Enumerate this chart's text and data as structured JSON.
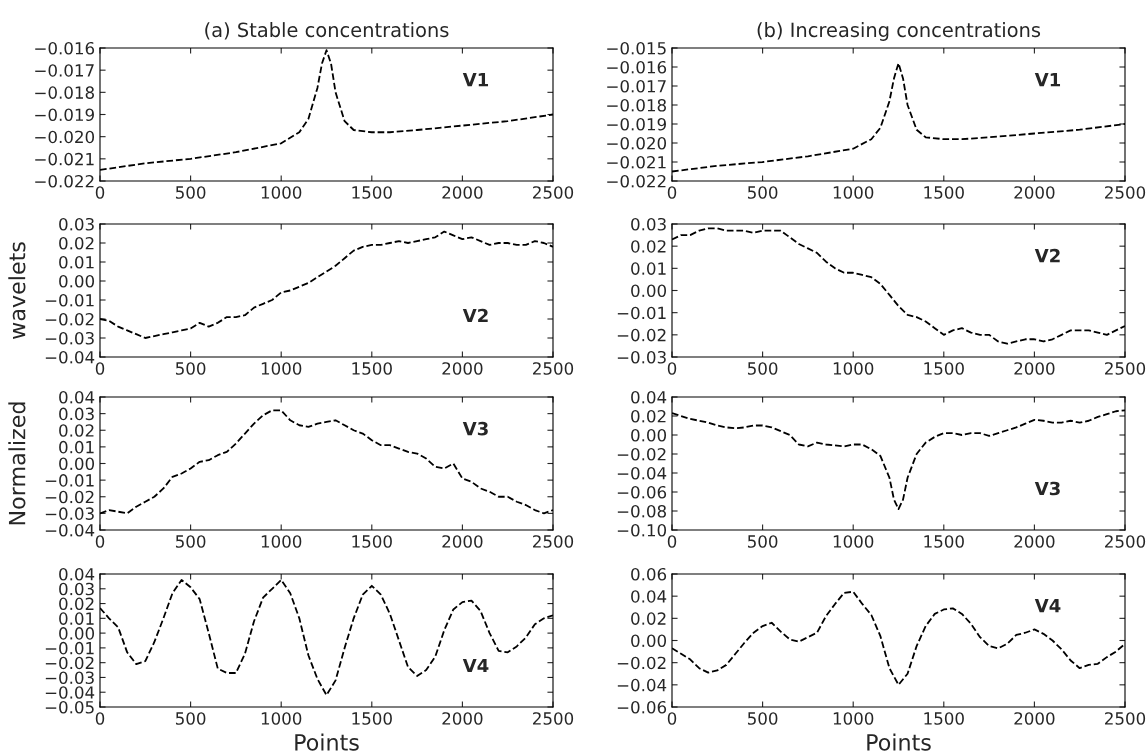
{
  "chart_data": [
    {
      "type": "line",
      "title": "(a) Stable concentrations",
      "line_style": "dashed",
      "xlim": [
        0,
        2500
      ],
      "xticks": [
        0,
        500,
        1000,
        1500,
        2000,
        2500
      ],
      "ylim": [
        -0.022,
        -0.016
      ],
      "yticks": [
        {
          "value": -0.022,
          "label": "−0.022"
        },
        {
          "value": -0.021,
          "label": "−0.021"
        },
        {
          "value": -0.02,
          "label": "−0.020"
        },
        {
          "value": -0.019,
          "label": "−0.019"
        },
        {
          "value": -0.018,
          "label": "−0.018"
        },
        {
          "value": -0.017,
          "label": "−0.017"
        },
        {
          "value": -0.016,
          "label": "−0.016"
        }
      ],
      "series": [
        {
          "name": "V1",
          "color": "#000000",
          "x": [
            0,
            250,
            500,
            750,
            1000,
            1100,
            1150,
            1200,
            1225,
            1250,
            1275,
            1300,
            1350,
            1400,
            1500,
            1600,
            1750,
            2000,
            2250,
            2500
          ],
          "values": [
            -0.0215,
            -0.0212,
            -0.021,
            -0.0207,
            -0.0203,
            -0.0198,
            -0.0192,
            -0.0178,
            -0.0167,
            -0.0161,
            -0.0167,
            -0.018,
            -0.0193,
            -0.0197,
            -0.0198,
            -0.0198,
            -0.0197,
            -0.0195,
            -0.0193,
            -0.019
          ]
        }
      ]
    },
    {
      "type": "line",
      "title": "(b) Increasing concentrations",
      "line_style": "dashed",
      "xlim": [
        0,
        2500
      ],
      "xticks": [
        0,
        500,
        1000,
        1500,
        2000,
        2500
      ],
      "ylim": [
        -0.022,
        -0.015
      ],
      "yticks": [
        {
          "value": -0.022,
          "label": "−0.022"
        },
        {
          "value": -0.021,
          "label": "−0.021"
        },
        {
          "value": -0.02,
          "label": "−0.020"
        },
        {
          "value": -0.019,
          "label": "−0.019"
        },
        {
          "value": -0.018,
          "label": "−0.018"
        },
        {
          "value": -0.017,
          "label": "−0.017"
        },
        {
          "value": -0.016,
          "label": "−0.016"
        },
        {
          "value": -0.015,
          "label": "−0.015"
        }
      ],
      "series": [
        {
          "name": "V1",
          "color": "#000000",
          "x": [
            0,
            250,
            500,
            750,
            1000,
            1100,
            1150,
            1200,
            1225,
            1250,
            1275,
            1300,
            1350,
            1400,
            1500,
            1600,
            1750,
            2000,
            2250,
            2500
          ],
          "values": [
            -0.0215,
            -0.0212,
            -0.021,
            -0.0207,
            -0.0203,
            -0.0198,
            -0.0192,
            -0.0178,
            -0.0166,
            -0.0158,
            -0.0166,
            -0.018,
            -0.0193,
            -0.0197,
            -0.0198,
            -0.0198,
            -0.0197,
            -0.0195,
            -0.0193,
            -0.019
          ]
        }
      ]
    },
    {
      "type": "line",
      "ylabel": "wavelets",
      "line_style": "dashed",
      "xlim": [
        0,
        2500
      ],
      "xticks": [
        0,
        500,
        1000,
        1500,
        2000,
        2500
      ],
      "ylim": [
        -0.04,
        0.03
      ],
      "yticks": [
        {
          "value": -0.04,
          "label": "−0.04"
        },
        {
          "value": -0.03,
          "label": "−0.03"
        },
        {
          "value": -0.02,
          "label": "−0.02"
        },
        {
          "value": -0.01,
          "label": "−0.01"
        },
        {
          "value": 0.0,
          "label": "0.00"
        },
        {
          "value": 0.01,
          "label": "0.01"
        },
        {
          "value": 0.02,
          "label": "0.02"
        },
        {
          "value": 0.03,
          "label": "0.03"
        }
      ],
      "series": [
        {
          "name": "V2",
          "color": "#000000",
          "x": [
            0,
            50,
            100,
            150,
            200,
            250,
            300,
            350,
            400,
            450,
            500,
            550,
            600,
            650,
            700,
            750,
            800,
            850,
            900,
            950,
            1000,
            1050,
            1100,
            1150,
            1200,
            1250,
            1300,
            1350,
            1400,
            1450,
            1500,
            1550,
            1600,
            1650,
            1700,
            1750,
            1800,
            1850,
            1900,
            1950,
            2000,
            2050,
            2100,
            2150,
            2200,
            2250,
            2300,
            2350,
            2400,
            2450,
            2500
          ],
          "values": [
            -0.02,
            -0.021,
            -0.024,
            -0.026,
            -0.028,
            -0.03,
            -0.029,
            -0.028,
            -0.027,
            -0.026,
            -0.025,
            -0.022,
            -0.024,
            -0.022,
            -0.019,
            -0.019,
            -0.018,
            -0.014,
            -0.012,
            -0.01,
            -0.006,
            -0.005,
            -0.003,
            -0.001,
            0.002,
            0.005,
            0.008,
            0.012,
            0.016,
            0.018,
            0.019,
            0.019,
            0.02,
            0.021,
            0.02,
            0.021,
            0.022,
            0.023,
            0.026,
            0.024,
            0.022,
            0.023,
            0.021,
            0.019,
            0.02,
            0.02,
            0.019,
            0.019,
            0.021,
            0.02,
            0.018
          ]
        }
      ]
    },
    {
      "type": "line",
      "line_style": "dashed",
      "xlim": [
        0,
        2500
      ],
      "xticks": [
        0,
        500,
        1000,
        1500,
        2000,
        2500
      ],
      "ylim": [
        -0.03,
        0.03
      ],
      "yticks": [
        {
          "value": -0.03,
          "label": "−0.03"
        },
        {
          "value": -0.02,
          "label": "−0.02"
        },
        {
          "value": -0.01,
          "label": "−0.01"
        },
        {
          "value": 0.0,
          "label": "0.00"
        },
        {
          "value": 0.01,
          "label": "0.01"
        },
        {
          "value": 0.02,
          "label": "0.02"
        },
        {
          "value": 0.03,
          "label": "0.03"
        }
      ],
      "series": [
        {
          "name": "V2",
          "color": "#000000",
          "x": [
            0,
            50,
            100,
            150,
            200,
            250,
            300,
            350,
            400,
            450,
            500,
            550,
            600,
            650,
            700,
            750,
            800,
            850,
            900,
            950,
            1000,
            1050,
            1100,
            1150,
            1200,
            1250,
            1300,
            1350,
            1400,
            1450,
            1500,
            1550,
            1600,
            1650,
            1700,
            1750,
            1800,
            1850,
            1900,
            1950,
            2000,
            2050,
            2100,
            2150,
            2200,
            2250,
            2300,
            2350,
            2400,
            2450,
            2500
          ],
          "values": [
            0.023,
            0.025,
            0.025,
            0.027,
            0.028,
            0.028,
            0.027,
            0.027,
            0.027,
            0.026,
            0.027,
            0.027,
            0.027,
            0.024,
            0.021,
            0.019,
            0.017,
            0.013,
            0.01,
            0.008,
            0.008,
            0.007,
            0.006,
            0.003,
            -0.002,
            -0.007,
            -0.011,
            -0.012,
            -0.014,
            -0.017,
            -0.02,
            -0.018,
            -0.017,
            -0.019,
            -0.02,
            -0.02,
            -0.023,
            -0.024,
            -0.023,
            -0.022,
            -0.022,
            -0.023,
            -0.022,
            -0.02,
            -0.018,
            -0.018,
            -0.018,
            -0.019,
            -0.02,
            -0.018,
            -0.016
          ]
        }
      ]
    },
    {
      "type": "line",
      "ylabel": "Normalized",
      "line_style": "dashed",
      "xlim": [
        0,
        2500
      ],
      "xticks": [
        0,
        500,
        1000,
        1500,
        2000,
        2500
      ],
      "ylim": [
        -0.04,
        0.04
      ],
      "yticks": [
        {
          "value": -0.04,
          "label": "−0.04"
        },
        {
          "value": -0.03,
          "label": "−0.03"
        },
        {
          "value": -0.02,
          "label": "−0.02"
        },
        {
          "value": -0.01,
          "label": "−0.01"
        },
        {
          "value": 0.0,
          "label": "0.00"
        },
        {
          "value": 0.01,
          "label": "0.01"
        },
        {
          "value": 0.02,
          "label": "0.02"
        },
        {
          "value": 0.03,
          "label": "0.03"
        },
        {
          "value": 0.04,
          "label": "0.04"
        }
      ],
      "series": [
        {
          "name": "V3",
          "color": "#000000",
          "x": [
            0,
            50,
            100,
            150,
            200,
            250,
            300,
            350,
            400,
            450,
            500,
            550,
            600,
            650,
            700,
            750,
            800,
            850,
            900,
            950,
            1000,
            1050,
            1100,
            1150,
            1200,
            1250,
            1300,
            1350,
            1400,
            1450,
            1500,
            1550,
            1600,
            1650,
            1700,
            1750,
            1800,
            1850,
            1900,
            1950,
            2000,
            2050,
            2100,
            2150,
            2200,
            2250,
            2300,
            2350,
            2400,
            2450,
            2500
          ],
          "values": [
            -0.03,
            -0.028,
            -0.029,
            -0.03,
            -0.026,
            -0.023,
            -0.02,
            -0.015,
            -0.008,
            -0.006,
            -0.003,
            0.001,
            0.002,
            0.005,
            0.007,
            0.012,
            0.018,
            0.024,
            0.029,
            0.032,
            0.032,
            0.026,
            0.023,
            0.022,
            0.024,
            0.025,
            0.026,
            0.023,
            0.02,
            0.018,
            0.014,
            0.011,
            0.011,
            0.009,
            0.007,
            0.006,
            0.003,
            -0.002,
            -0.003,
            0.0,
            -0.009,
            -0.011,
            -0.015,
            -0.017,
            -0.02,
            -0.02,
            -0.023,
            -0.025,
            -0.028,
            -0.03,
            -0.028
          ]
        }
      ]
    },
    {
      "type": "line",
      "line_style": "dashed",
      "xlim": [
        0,
        2500
      ],
      "xticks": [
        0,
        500,
        1000,
        1500,
        2000,
        2500
      ],
      "ylim": [
        -0.1,
        0.04
      ],
      "yticks": [
        {
          "value": -0.1,
          "label": "−0.10"
        },
        {
          "value": -0.08,
          "label": "−0.08"
        },
        {
          "value": -0.06,
          "label": "−0.06"
        },
        {
          "value": -0.04,
          "label": "−0.04"
        },
        {
          "value": -0.02,
          "label": "−0.02"
        },
        {
          "value": 0.0,
          "label": "0.00"
        },
        {
          "value": 0.02,
          "label": "0.02"
        },
        {
          "value": 0.04,
          "label": "0.04"
        }
      ],
      "series": [
        {
          "name": "V3",
          "color": "#000000",
          "x": [
            0,
            50,
            100,
            150,
            200,
            250,
            300,
            350,
            400,
            450,
            500,
            550,
            600,
            650,
            700,
            750,
            800,
            850,
            900,
            950,
            1000,
            1050,
            1100,
            1150,
            1200,
            1225,
            1250,
            1275,
            1300,
            1350,
            1400,
            1450,
            1500,
            1550,
            1600,
            1650,
            1700,
            1750,
            1800,
            1850,
            1900,
            1950,
            2000,
            2050,
            2100,
            2150,
            2200,
            2250,
            2300,
            2350,
            2400,
            2450,
            2500
          ],
          "values": [
            0.023,
            0.02,
            0.017,
            0.015,
            0.013,
            0.01,
            0.008,
            0.007,
            0.008,
            0.01,
            0.01,
            0.008,
            0.004,
            0.0,
            -0.01,
            -0.012,
            -0.008,
            -0.01,
            -0.011,
            -0.012,
            -0.01,
            -0.01,
            -0.015,
            -0.022,
            -0.045,
            -0.068,
            -0.078,
            -0.068,
            -0.045,
            -0.02,
            -0.008,
            -0.002,
            0.002,
            0.002,
            0.0,
            0.002,
            0.002,
            -0.001,
            0.002,
            0.005,
            0.008,
            0.012,
            0.016,
            0.015,
            0.013,
            0.013,
            0.015,
            0.013,
            0.015,
            0.019,
            0.022,
            0.025,
            0.026
          ]
        }
      ]
    },
    {
      "type": "line",
      "xlabel": "Points",
      "line_style": "dashed",
      "xlim": [
        0,
        2500
      ],
      "xticks": [
        0,
        500,
        1000,
        1500,
        2000,
        2500
      ],
      "ylim": [
        -0.05,
        0.04
      ],
      "yticks": [
        {
          "value": -0.05,
          "label": "−0.05"
        },
        {
          "value": -0.04,
          "label": "−0.04"
        },
        {
          "value": -0.03,
          "label": "−0.03"
        },
        {
          "value": -0.02,
          "label": "−0.02"
        },
        {
          "value": -0.01,
          "label": "−0.01"
        },
        {
          "value": 0.0,
          "label": "0.00"
        },
        {
          "value": 0.01,
          "label": "0.01"
        },
        {
          "value": 0.02,
          "label": "0.02"
        },
        {
          "value": 0.03,
          "label": "0.03"
        },
        {
          "value": 0.04,
          "label": "0.04"
        }
      ],
      "series": [
        {
          "name": "V4",
          "color": "#000000",
          "x": [
            0,
            50,
            100,
            150,
            200,
            250,
            300,
            350,
            400,
            450,
            500,
            550,
            600,
            650,
            700,
            750,
            800,
            850,
            900,
            950,
            1000,
            1050,
            1100,
            1150,
            1200,
            1250,
            1300,
            1350,
            1400,
            1450,
            1500,
            1550,
            1600,
            1650,
            1700,
            1750,
            1800,
            1850,
            1900,
            1950,
            2000,
            2050,
            2100,
            2150,
            2200,
            2250,
            2300,
            2350,
            2400,
            2450,
            2500
          ],
          "values": [
            0.017,
            0.01,
            0.004,
            -0.013,
            -0.021,
            -0.019,
            -0.006,
            0.01,
            0.027,
            0.036,
            0.031,
            0.023,
            0.0,
            -0.024,
            -0.027,
            -0.027,
            -0.014,
            0.008,
            0.024,
            0.03,
            0.036,
            0.027,
            0.01,
            -0.015,
            -0.031,
            -0.042,
            -0.032,
            -0.01,
            0.01,
            0.026,
            0.032,
            0.026,
            0.013,
            -0.005,
            -0.023,
            -0.029,
            -0.025,
            -0.016,
            0.002,
            0.016,
            0.021,
            0.022,
            0.015,
            0.0,
            -0.012,
            -0.013,
            -0.009,
            -0.003,
            0.006,
            0.01,
            0.012
          ]
        }
      ]
    },
    {
      "type": "line",
      "xlabel": "Points",
      "line_style": "dashed",
      "xlim": [
        0,
        2500
      ],
      "xticks": [
        0,
        500,
        1000,
        1500,
        2000,
        2500
      ],
      "ylim": [
        -0.06,
        0.06
      ],
      "yticks": [
        {
          "value": -0.06,
          "label": "−0.06"
        },
        {
          "value": -0.04,
          "label": "−0.04"
        },
        {
          "value": -0.02,
          "label": "−0.02"
        },
        {
          "value": 0.0,
          "label": "0.00"
        },
        {
          "value": 0.02,
          "label": "0.02"
        },
        {
          "value": 0.04,
          "label": "0.04"
        },
        {
          "value": 0.06,
          "label": "0.06"
        }
      ],
      "series": [
        {
          "name": "V4",
          "color": "#000000",
          "x": [
            0,
            50,
            100,
            150,
            200,
            250,
            300,
            350,
            400,
            450,
            500,
            550,
            600,
            650,
            700,
            750,
            800,
            850,
            900,
            950,
            1000,
            1050,
            1100,
            1150,
            1200,
            1250,
            1300,
            1350,
            1400,
            1450,
            1500,
            1550,
            1600,
            1650,
            1700,
            1750,
            1800,
            1850,
            1900,
            1950,
            2000,
            2050,
            2100,
            2150,
            2200,
            2250,
            2300,
            2350,
            2400,
            2450,
            2500
          ],
          "values": [
            -0.007,
            -0.012,
            -0.017,
            -0.025,
            -0.029,
            -0.027,
            -0.022,
            -0.012,
            -0.002,
            0.007,
            0.013,
            0.016,
            0.008,
            0.001,
            -0.001,
            0.003,
            0.007,
            0.022,
            0.033,
            0.043,
            0.044,
            0.033,
            0.023,
            0.004,
            -0.025,
            -0.04,
            -0.03,
            -0.005,
            0.013,
            0.024,
            0.028,
            0.029,
            0.024,
            0.015,
            0.003,
            -0.005,
            -0.007,
            -0.003,
            0.005,
            0.007,
            0.01,
            0.006,
            0.0,
            -0.008,
            -0.018,
            -0.025,
            -0.022,
            -0.021,
            -0.015,
            -0.01,
            -0.003
          ]
        }
      ]
    }
  ]
}
